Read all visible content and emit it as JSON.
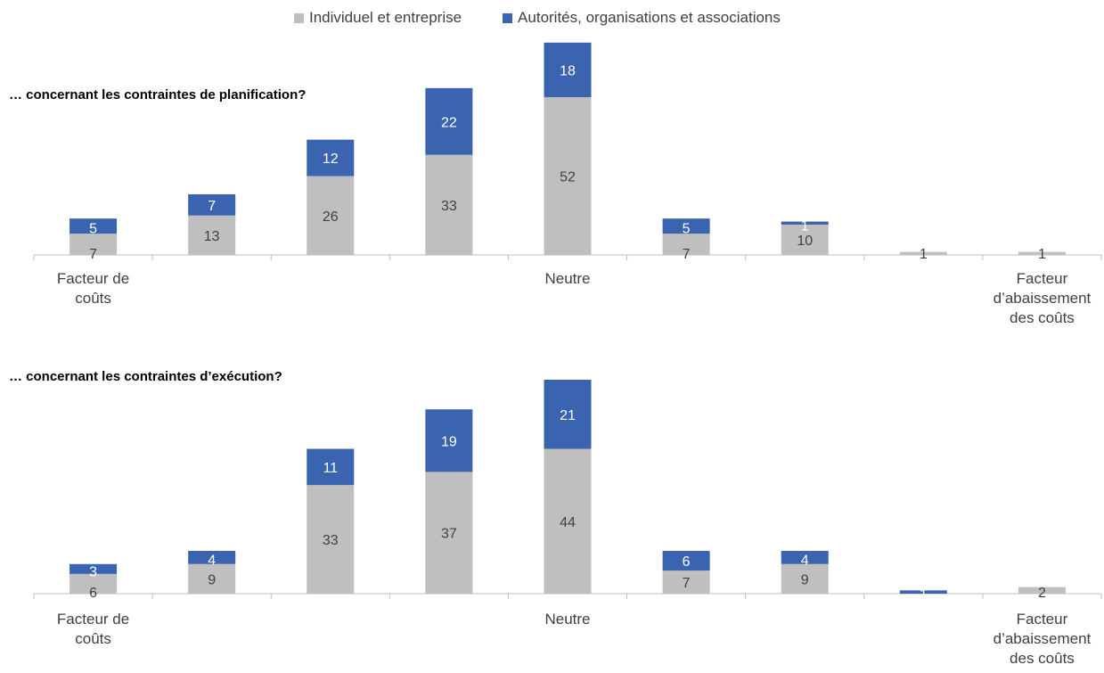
{
  "legend": {
    "series_a": "Individuel et entreprise",
    "series_b": "Autorités, organisations et associations"
  },
  "colors": {
    "series_a": "#bfbfbf",
    "series_b": "#3a63b0",
    "axis": "#bfbfbf",
    "label_dark": "#404040",
    "label_light": "#ffffff"
  },
  "chart_data": [
    {
      "type": "bar",
      "stacked": true,
      "title": "… concernant les contraintes de planification?",
      "category_labels": [
        "Facteur de coûts",
        "",
        "",
        "",
        "Neutre",
        "",
        "",
        "",
        "Facteur d’abaissement des coûts"
      ],
      "series": [
        {
          "name": "Individuel et entreprise",
          "values": [
            7,
            13,
            26,
            33,
            52,
            7,
            10,
            1,
            1
          ]
        },
        {
          "name": "Autorités, organisations et associations",
          "values": [
            5,
            7,
            12,
            22,
            18,
            5,
            1,
            0,
            0
          ]
        }
      ],
      "ylim": [
        0,
        72
      ]
    },
    {
      "type": "bar",
      "stacked": true,
      "title": "… concernant les contraintes d’exécution?",
      "category_labels": [
        "Facteur de coûts",
        "",
        "",
        "",
        "Neutre",
        "",
        "",
        "",
        "Facteur d’abaissement des coûts"
      ],
      "series": [
        {
          "name": "Individuel et entreprise",
          "values": [
            6,
            9,
            33,
            37,
            44,
            7,
            9,
            0,
            2
          ]
        },
        {
          "name": "Autorités, organisations et associations",
          "values": [
            3,
            4,
            11,
            19,
            21,
            6,
            4,
            1,
            0
          ]
        }
      ],
      "ylim": [
        0,
        65
      ]
    }
  ]
}
